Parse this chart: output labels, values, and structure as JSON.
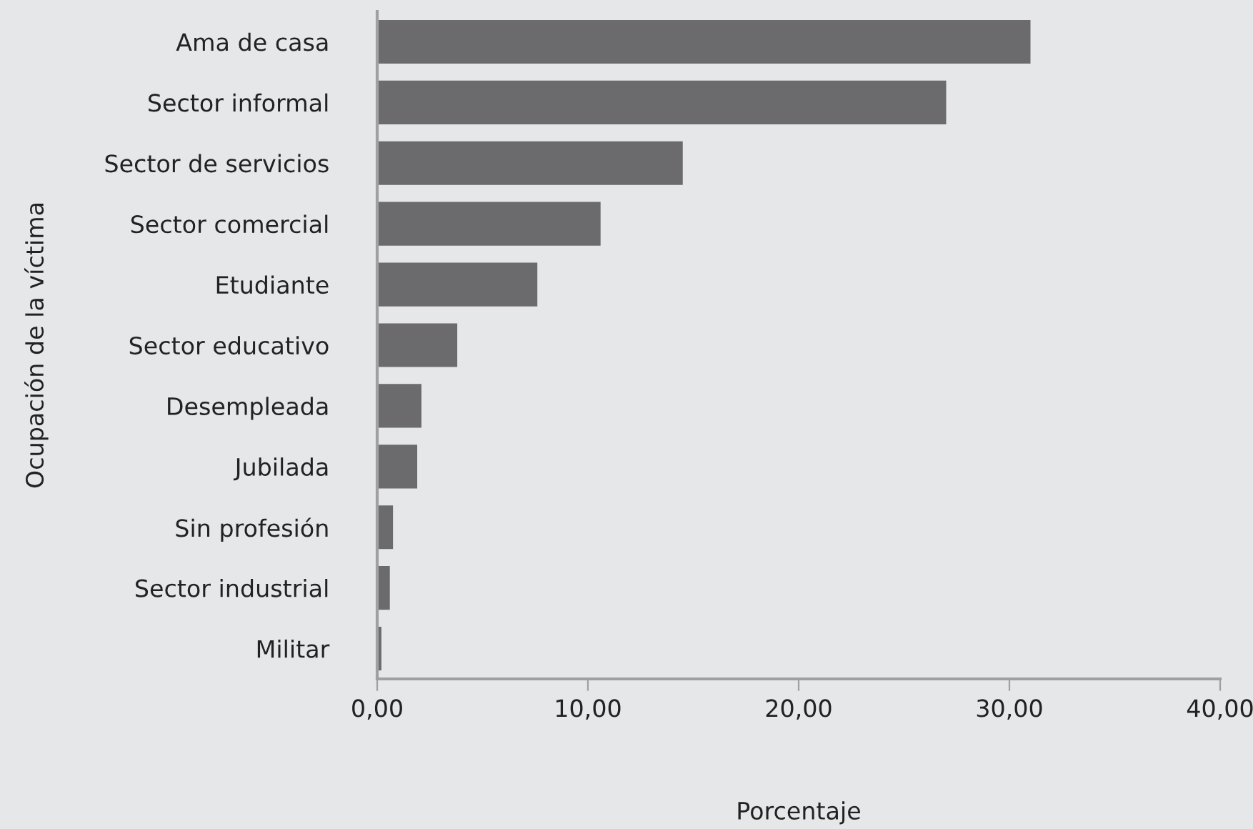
{
  "chart_data": {
    "type": "bar",
    "orientation": "horizontal",
    "xlabel": "Porcentaje",
    "ylabel": "Ocupación de la víctima",
    "categories": [
      "Ama de casa",
      "Sector informal",
      "Sector de servicios",
      "Sector comercial",
      "Etudiante",
      "Sector educativo",
      "Desempleada",
      "Jubilada",
      "Sin profesión",
      "Sector industrial",
      "Militar"
    ],
    "values": [
      31.0,
      27.0,
      14.5,
      10.6,
      7.6,
      3.8,
      2.1,
      1.9,
      0.75,
      0.6,
      0.2
    ],
    "color": "#6b6b6e",
    "xlim": [
      0,
      40
    ],
    "xticks": [
      {
        "value": 0,
        "label": "0,00"
      },
      {
        "value": 10,
        "label": "10,00"
      },
      {
        "value": 20,
        "label": "20,00"
      },
      {
        "value": 30,
        "label": "30,00"
      },
      {
        "value": 40,
        "label": "40,00"
      }
    ],
    "grid": false,
    "legend": false
  }
}
